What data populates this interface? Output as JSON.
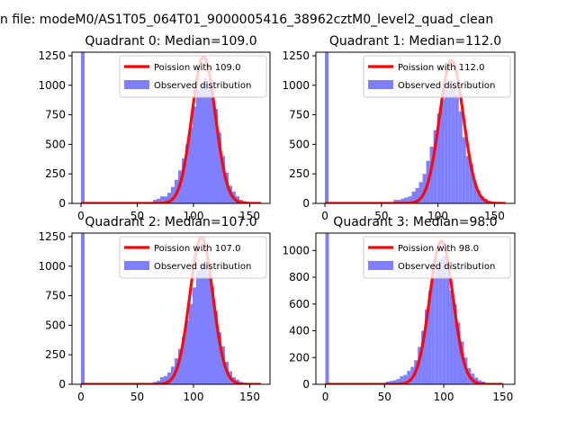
{
  "figure": {
    "suptitle": "n file: modeM0/AS1T05_064T01_9000005416_38962cztM0_level2_quad_clean",
    "colors": {
      "bar": "#8080ff",
      "fit": "#ff0000",
      "axis": "#000000",
      "legend_edge": "#cccccc"
    }
  },
  "chart_data": [
    {
      "type": "bar",
      "title": "Quadrant 0: Median=109.0",
      "xlim": [
        -8,
        168
      ],
      "ylim": [
        0,
        1280
      ],
      "xticks": [
        0,
        50,
        100,
        150
      ],
      "yticks": [
        0,
        250,
        500,
        750,
        1000,
        1250
      ],
      "grid": false,
      "legend_position": "upper-right",
      "series": [
        {
          "name": "Poission with 109.0",
          "kind": "line",
          "mean": 109.0,
          "peak": 1240,
          "sigma": 10.4,
          "x_from": 0,
          "x_to": 160
        },
        {
          "name": "Observed distribution",
          "kind": "bar",
          "bin_width": 3.2,
          "bins": [
            [
              0,
              1280
            ],
            [
              64,
              30
            ],
            [
              67.2,
              40
            ],
            [
              70.4,
              60
            ],
            [
              73.6,
              60
            ],
            [
              76.8,
              90
            ],
            [
              80,
              140
            ],
            [
              83.2,
              200
            ],
            [
              86.4,
              280
            ],
            [
              89.6,
              380
            ],
            [
              92.8,
              500
            ],
            [
              96,
              640
            ],
            [
              99.2,
              820
            ],
            [
              102.4,
              960
            ],
            [
              105.6,
              1010
            ],
            [
              108.8,
              1060
            ],
            [
              112,
              1000
            ],
            [
              115.2,
              940
            ],
            [
              118.4,
              800
            ],
            [
              121.6,
              600
            ],
            [
              124.8,
              400
            ],
            [
              128,
              260
            ],
            [
              131.2,
              150
            ],
            [
              134.4,
              100
            ],
            [
              137.6,
              60
            ],
            [
              140.8,
              30
            ],
            [
              144,
              20
            ],
            [
              147.2,
              10
            ]
          ]
        }
      ]
    },
    {
      "type": "bar",
      "title": "Quadrant 1: Median=112.0",
      "xlim": [
        -8,
        168
      ],
      "ylim": [
        0,
        1280
      ],
      "xticks": [
        0,
        50,
        100,
        150
      ],
      "yticks": [
        0,
        250,
        500,
        750,
        1000,
        1250
      ],
      "grid": false,
      "legend_position": "upper-right",
      "series": [
        {
          "name": "Poission with 112.0",
          "kind": "line",
          "mean": 112.0,
          "peak": 1210,
          "sigma": 10.6,
          "x_from": 0,
          "x_to": 160
        },
        {
          "name": "Observed distribution",
          "kind": "bar",
          "bin_width": 3.2,
          "bins": [
            [
              0,
              1280
            ],
            [
              60.8,
              30
            ],
            [
              64,
              30
            ],
            [
              67.2,
              40
            ],
            [
              70.4,
              50
            ],
            [
              73.6,
              60
            ],
            [
              76.8,
              100
            ],
            [
              80,
              130
            ],
            [
              83.2,
              180
            ],
            [
              86.4,
              250
            ],
            [
              89.6,
              360
            ],
            [
              92.8,
              480
            ],
            [
              96,
              620
            ],
            [
              99.2,
              760
            ],
            [
              102.4,
              880
            ],
            [
              105.6,
              960
            ],
            [
              108.8,
              1010
            ],
            [
              112,
              1000
            ],
            [
              115.2,
              920
            ],
            [
              118.4,
              780
            ],
            [
              121.6,
              560
            ],
            [
              124.8,
              400
            ],
            [
              128,
              330
            ],
            [
              131.2,
              180
            ],
            [
              134.4,
              110
            ],
            [
              137.6,
              60
            ],
            [
              140.8,
              40
            ],
            [
              144,
              20
            ]
          ]
        }
      ]
    },
    {
      "type": "bar",
      "title": "Quadrant 2: Median=107.0",
      "xlim": [
        -8,
        168
      ],
      "ylim": [
        0,
        1280
      ],
      "xticks": [
        0,
        50,
        100,
        150
      ],
      "yticks": [
        0,
        250,
        500,
        750,
        1000,
        1250
      ],
      "grid": false,
      "legend_position": "upper-right",
      "series": [
        {
          "name": "Poission with 107.0",
          "kind": "line",
          "mean": 107.0,
          "peak": 1240,
          "sigma": 10.3,
          "x_from": 0,
          "x_to": 160
        },
        {
          "name": "Observed distribution",
          "kind": "bar",
          "bin_width": 3.2,
          "bins": [
            [
              0,
              1280
            ],
            [
              64,
              20
            ],
            [
              67.2,
              30
            ],
            [
              70.4,
              60
            ],
            [
              73.6,
              70
            ],
            [
              76.8,
              100
            ],
            [
              80,
              150
            ],
            [
              83.2,
              220
            ],
            [
              86.4,
              300
            ],
            [
              89.6,
              400
            ],
            [
              92.8,
              540
            ],
            [
              96,
              680
            ],
            [
              99.2,
              820
            ],
            [
              102.4,
              960
            ],
            [
              105.6,
              1030
            ],
            [
              108.8,
              1010
            ],
            [
              112,
              940
            ],
            [
              115.2,
              820
            ],
            [
              118.4,
              620
            ],
            [
              121.6,
              440
            ],
            [
              124.8,
              320
            ],
            [
              128,
              190
            ],
            [
              131.2,
              110
            ],
            [
              134.4,
              60
            ],
            [
              137.6,
              40
            ],
            [
              140.8,
              20
            ],
            [
              144,
              10
            ]
          ]
        }
      ]
    },
    {
      "type": "bar",
      "title": "Quadrant 3: Median=98.0",
      "xlim": [
        -8,
        160
      ],
      "ylim": [
        0,
        1130
      ],
      "xticks": [
        0,
        50,
        100,
        150
      ],
      "yticks": [
        0,
        200,
        400,
        600,
        800,
        1000
      ],
      "grid": false,
      "legend_position": "upper-right",
      "series": [
        {
          "name": "Poission with 98.0",
          "kind": "line",
          "mean": 98.0,
          "peak": 1070,
          "sigma": 9.9,
          "x_from": 0,
          "x_to": 150
        },
        {
          "name": "Observed distribution",
          "kind": "bar",
          "bin_width": 3.0,
          "bins": [
            [
              0,
              1130
            ],
            [
              51,
              20
            ],
            [
              54,
              25
            ],
            [
              57,
              30
            ],
            [
              60,
              40
            ],
            [
              63,
              60
            ],
            [
              66,
              70
            ],
            [
              69,
              100
            ],
            [
              72,
              130
            ],
            [
              75,
              180
            ],
            [
              78,
              280
            ],
            [
              81,
              400
            ],
            [
              84,
              560
            ],
            [
              87,
              700
            ],
            [
              90,
              790
            ],
            [
              93,
              880
            ],
            [
              96,
              940
            ],
            [
              99,
              960
            ],
            [
              102,
              880
            ],
            [
              105,
              700
            ],
            [
              108,
              600
            ],
            [
              111,
              460
            ],
            [
              114,
              320
            ],
            [
              117,
              200
            ],
            [
              120,
              120
            ],
            [
              123,
              80
            ],
            [
              126,
              50
            ],
            [
              129,
              30
            ],
            [
              132,
              20
            ]
          ]
        }
      ]
    }
  ]
}
